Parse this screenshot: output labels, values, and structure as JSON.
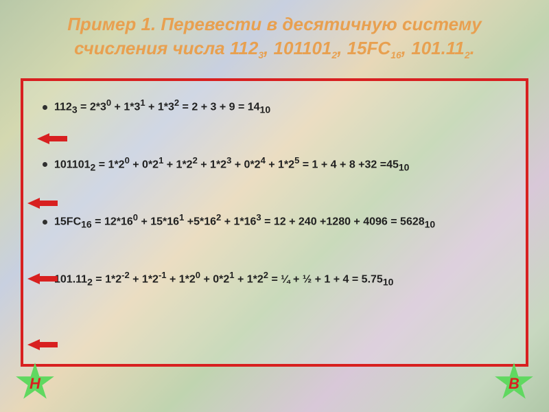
{
  "title": {
    "prefix": "Пример 1.",
    "text": "Перевести в десятичную систему счисления числа 112",
    "sub1": "3",
    "p2": ", 101101",
    "sub2": "2",
    "p3": ", 15FC",
    "sub3": "16",
    "p4": ", 101.11",
    "sub4": "2",
    "end": "."
  },
  "lines": {
    "l1": {
      "a": "112",
      "as": "3",
      "b": " = 2*3",
      "bs": "0",
      "c": " + 1*3",
      "cs": "1",
      "d": " + 1*3",
      "ds": "2",
      "e": " = 2 + 3 + 9 = 14",
      "es": "10"
    },
    "l2": {
      "a": "101101",
      "as": "2",
      "b": " = 1*2",
      "bs": "0",
      "c": " + 0*2",
      "cs": "1",
      "d": " + 1*2",
      "ds": "2",
      "e": " + 1*2",
      "es": "3",
      "f": " + 0*2",
      "fs": "4",
      "g": " + 1*2",
      "gs": "5",
      "h": " = 1 + 4 + 8 +32 =45",
      "hs": "10"
    },
    "l3": {
      "a": "15FC",
      "as": "16",
      "b": " = 12*16",
      "bs": "0",
      "c": " + 15*16",
      "cs": "1",
      "d": " +5*16",
      "ds": "2",
      "e": " + 1*16",
      "es": "3",
      "f": " = 12 + 240 +1280 + 4096 = 5628",
      "fs": "10"
    },
    "l4": {
      "a": "101.11",
      "as": "2",
      "b": " = 1*2",
      "bs": "-2",
      "c": " + 1*2",
      "cs": "-1",
      "d": " + 1*2",
      "ds": "0",
      "e": " + 0*2",
      "es": "1",
      "f": " + 1*2",
      "fs": "2",
      "g": " = ¼ + ½ + 1 + 4 = 5.75",
      "gs": "10"
    }
  },
  "nav": {
    "left": "Н",
    "right": "В"
  }
}
